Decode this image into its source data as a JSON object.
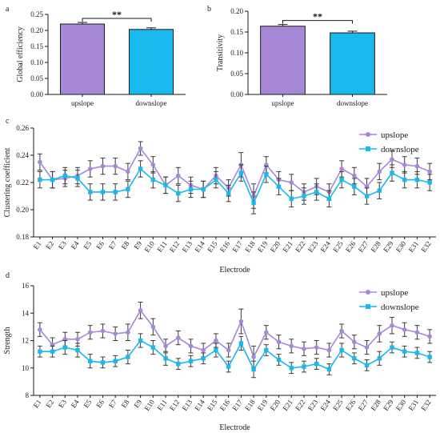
{
  "chart_data": [
    {
      "panel": "a",
      "type": "bar",
      "categories": [
        "upslope",
        "downslope"
      ],
      "values": [
        0.22,
        0.203
      ],
      "errors": [
        0.005,
        0.005
      ],
      "colors": [
        "#a688d6",
        "#19b8ee"
      ],
      "ylabel": "Global efficiency",
      "xlabel": "",
      "ylim": [
        0.0,
        0.25
      ],
      "yticks": [
        "0.00",
        "0.05",
        "0.10",
        "0.15",
        "0.20",
        "0.25"
      ],
      "significance": "**"
    },
    {
      "panel": "b",
      "type": "bar",
      "categories": [
        "upslope",
        "downslope"
      ],
      "values": [
        0.164,
        0.148
      ],
      "errors": [
        0.004,
        0.004
      ],
      "colors": [
        "#a688d6",
        "#19b8ee"
      ],
      "ylabel": "Transitivity",
      "xlabel": "",
      "ylim": [
        0.0,
        0.2
      ],
      "yticks": [
        "0.00",
        "0.05",
        "0.10",
        "0.15",
        "0.20"
      ],
      "significance": "**"
    },
    {
      "panel": "c",
      "type": "line",
      "x": [
        "E1",
        "E2",
        "E3",
        "E4",
        "E5",
        "E6",
        "E7",
        "E8",
        "E9",
        "E10",
        "E11",
        "E12",
        "E13",
        "E14",
        "E15",
        "E16",
        "E17",
        "E18",
        "E19",
        "E20",
        "E21",
        "E22",
        "E23",
        "E24",
        "E25",
        "E26",
        "E27",
        "E28",
        "E29",
        "E30",
        "E31",
        "E32"
      ],
      "series": [
        {
          "name": "upslope",
          "color": "#a688d6",
          "marker": "circle",
          "values": [
            0.235,
            0.222,
            0.223,
            0.225,
            0.23,
            0.232,
            0.232,
            0.228,
            0.245,
            0.233,
            0.218,
            0.225,
            0.218,
            0.215,
            0.225,
            0.216,
            0.233,
            0.21,
            0.233,
            0.222,
            0.22,
            0.213,
            0.217,
            0.213,
            0.23,
            0.225,
            0.217,
            0.228,
            0.237,
            0.233,
            0.232,
            0.228
          ],
          "errors": [
            0.006,
            0.006,
            0.006,
            0.006,
            0.006,
            0.006,
            0.006,
            0.006,
            0.005,
            0.006,
            0.006,
            0.006,
            0.006,
            0.006,
            0.006,
            0.006,
            0.009,
            0.009,
            0.006,
            0.006,
            0.006,
            0.006,
            0.006,
            0.006,
            0.006,
            0.006,
            0.006,
            0.006,
            0.006,
            0.006,
            0.006,
            0.006
          ]
        },
        {
          "name": "downslope",
          "color": "#19b8ee",
          "marker": "square",
          "values": [
            0.222,
            0.222,
            0.225,
            0.223,
            0.213,
            0.213,
            0.213,
            0.215,
            0.23,
            0.222,
            0.218,
            0.212,
            0.215,
            0.215,
            0.222,
            0.212,
            0.227,
            0.205,
            0.226,
            0.217,
            0.208,
            0.21,
            0.213,
            0.208,
            0.222,
            0.217,
            0.21,
            0.214,
            0.227,
            0.222,
            0.222,
            0.22
          ],
          "errors": [
            0.006,
            0.006,
            0.006,
            0.006,
            0.006,
            0.006,
            0.006,
            0.006,
            0.006,
            0.006,
            0.006,
            0.006,
            0.006,
            0.006,
            0.006,
            0.006,
            0.006,
            0.008,
            0.006,
            0.006,
            0.006,
            0.006,
            0.006,
            0.006,
            0.006,
            0.006,
            0.006,
            0.006,
            0.006,
            0.006,
            0.006,
            0.006
          ]
        }
      ],
      "xlabel": "Electrode",
      "ylabel": "Clustering coefficient",
      "ylim": [
        0.18,
        0.26
      ],
      "yticks": [
        "0.18",
        "0.20",
        "0.22",
        "0.24",
        "0.26"
      ],
      "legend": "top-right"
    },
    {
      "panel": "d",
      "type": "line",
      "x": [
        "E1",
        "E2",
        "E3",
        "E4",
        "E5",
        "E6",
        "E7",
        "E8",
        "E9",
        "E10",
        "E11",
        "E12",
        "E13",
        "E14",
        "E15",
        "E16",
        "E17",
        "E18",
        "E19",
        "E20",
        "E21",
        "E22",
        "E23",
        "E24",
        "E25",
        "E26",
        "E27",
        "E28",
        "E29",
        "E30",
        "E31",
        "E32"
      ],
      "series": [
        {
          "name": "upslope",
          "color": "#a688d6",
          "marker": "circle",
          "values": [
            12.8,
            11.7,
            12.1,
            12.1,
            12.6,
            12.7,
            12.5,
            12.6,
            14.2,
            13.0,
            11.6,
            12.2,
            11.6,
            11.3,
            12.0,
            11.3,
            13.4,
            10.8,
            12.6,
            11.9,
            11.6,
            11.4,
            11.5,
            11.3,
            12.7,
            11.9,
            11.5,
            12.5,
            13.1,
            12.8,
            12.6,
            12.3
          ],
          "errors": [
            0.5,
            0.5,
            0.5,
            0.5,
            0.5,
            0.5,
            0.5,
            0.6,
            0.6,
            0.6,
            0.5,
            0.5,
            0.5,
            0.5,
            0.5,
            0.5,
            0.9,
            0.8,
            0.5,
            0.5,
            0.5,
            0.5,
            0.5,
            0.5,
            0.5,
            0.5,
            0.5,
            0.6,
            0.6,
            0.5,
            0.5,
            0.5
          ]
        },
        {
          "name": "downslope",
          "color": "#19b8ee",
          "marker": "square",
          "values": [
            11.2,
            11.2,
            11.5,
            11.3,
            10.5,
            10.4,
            10.5,
            10.8,
            12.0,
            11.5,
            10.7,
            10.3,
            10.5,
            10.7,
            11.3,
            10.1,
            11.8,
            9.9,
            11.3,
            10.6,
            10.0,
            10.1,
            10.3,
            9.9,
            11.3,
            10.7,
            10.2,
            10.7,
            11.5,
            11.2,
            11.1,
            10.8
          ],
          "errors": [
            0.4,
            0.4,
            0.5,
            0.5,
            0.5,
            0.4,
            0.4,
            0.5,
            0.5,
            0.5,
            0.5,
            0.4,
            0.4,
            0.4,
            0.5,
            0.4,
            0.5,
            0.6,
            0.4,
            0.4,
            0.4,
            0.4,
            0.4,
            0.4,
            0.5,
            0.4,
            0.4,
            0.5,
            0.4,
            0.4,
            0.4,
            0.4
          ]
        }
      ],
      "xlabel": "Electrode",
      "ylabel": "Strength",
      "ylim": [
        8,
        16
      ],
      "yticks": [
        "8",
        "10",
        "12",
        "14",
        "16"
      ],
      "legend": "top-right"
    }
  ]
}
